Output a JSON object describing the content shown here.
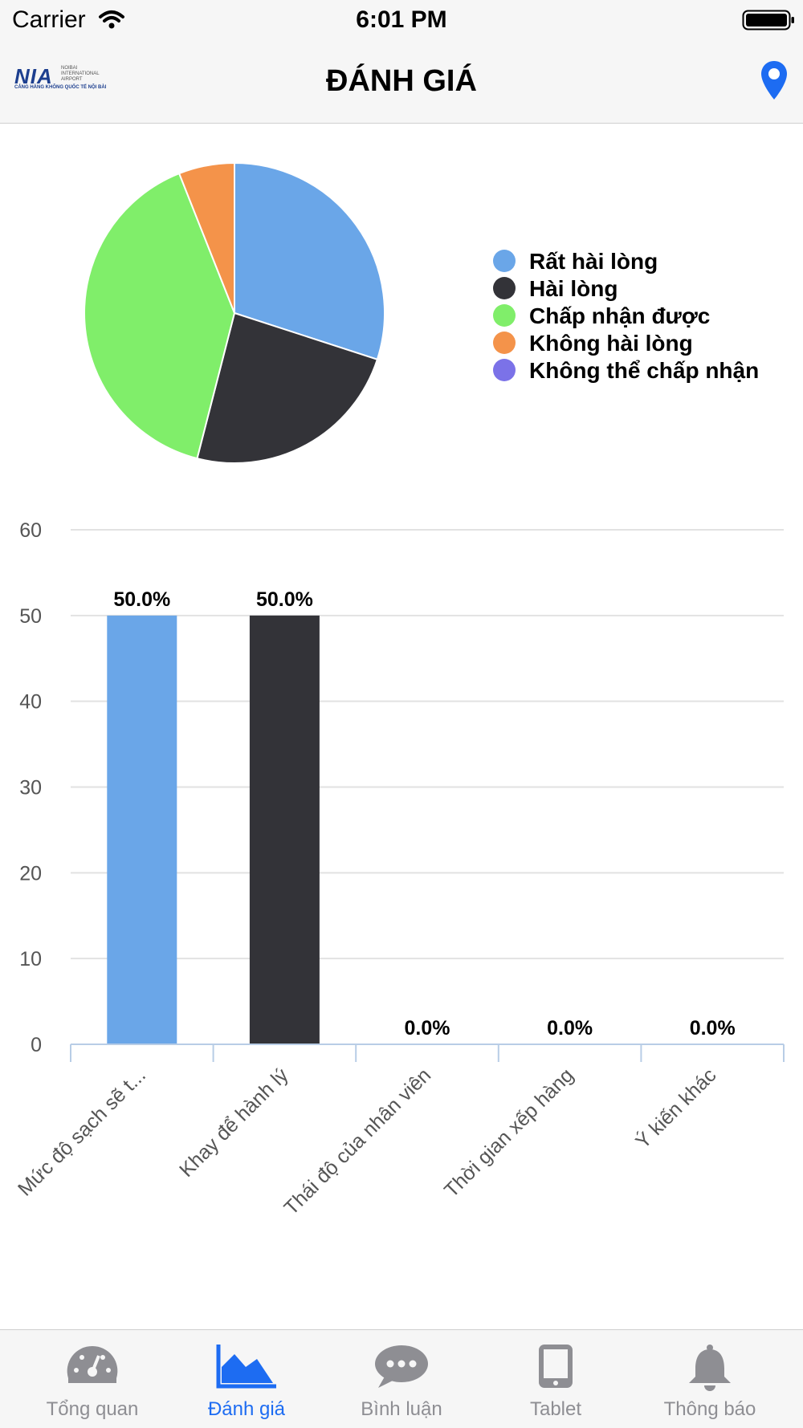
{
  "status_bar": {
    "carrier": "Carrier",
    "time": "6:01 PM"
  },
  "header": {
    "logo": {
      "main": "NIA",
      "side": "NOIBAI INTERNATIONAL AIRPORT",
      "bottom": "CẢNG HÀNG KHÔNG QUỐC TẾ NỘI BÀI"
    },
    "title": "ĐÁNH GIÁ"
  },
  "tabs": [
    {
      "label": "Tổng quan",
      "icon": "speedometer-icon",
      "active": false
    },
    {
      "label": "Đánh giá",
      "icon": "area-chart-icon",
      "active": true
    },
    {
      "label": "Bình luận",
      "icon": "chat-bubble-icon",
      "active": false
    },
    {
      "label": "Tablet",
      "icon": "tablet-icon",
      "active": false
    },
    {
      "label": "Thông báo",
      "icon": "bell-icon",
      "active": false
    }
  ],
  "colors": {
    "accent": "#1d6cf2",
    "tab_inactive": "#8e8e93"
  },
  "chart_data": [
    {
      "type": "pie",
      "categories": [
        "Rất hài lòng",
        "Hài lòng",
        "Chấp nhận được",
        "Không hài lòng",
        "Không thể chấp nhận"
      ],
      "values": [
        30,
        24,
        40,
        6,
        0
      ],
      "colors": [
        "#6aa6e8",
        "#333338",
        "#80ee6a",
        "#f4934a",
        "#7b72e8"
      ],
      "legend_position": "right"
    },
    {
      "type": "bar",
      "categories": [
        "Mức độ sạch sẽ t...",
        "Khay để hành lý",
        "Thái độ của nhân viên",
        "Thời gian xếp hàng",
        "Ý kiến khác"
      ],
      "values": [
        50,
        50,
        0,
        0,
        0
      ],
      "data_labels": [
        "50.0%",
        "50.0%",
        "0.0%",
        "0.0%",
        "0.0%"
      ],
      "colors": [
        "#6aa6e8",
        "#333338",
        "#80ee6a",
        "#f4934a",
        "#7b72e8"
      ],
      "ylim": [
        0,
        60
      ],
      "yticks": [
        0,
        10,
        20,
        30,
        40,
        50,
        60
      ],
      "grid": true
    }
  ]
}
